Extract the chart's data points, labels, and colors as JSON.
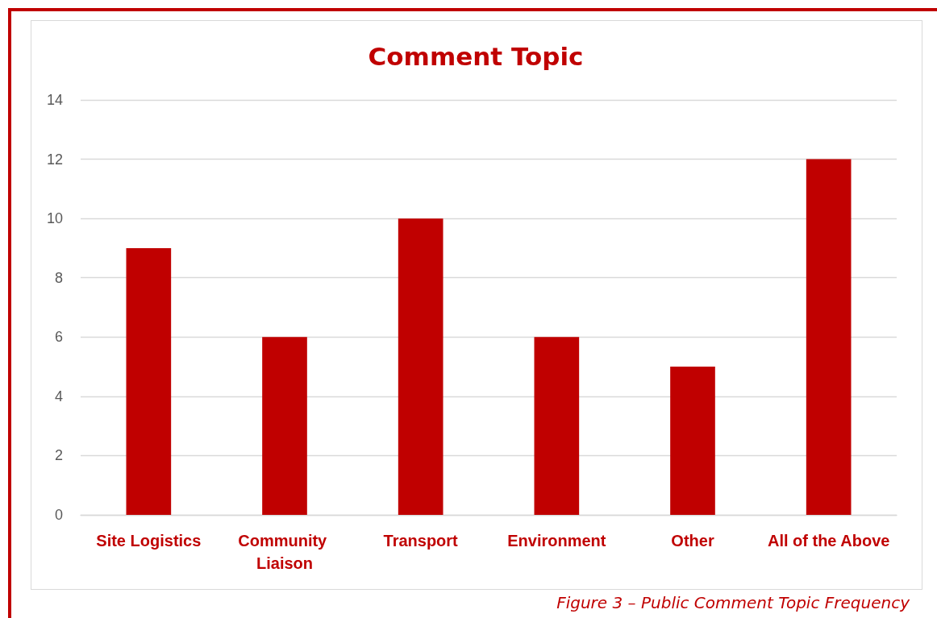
{
  "chart_data": {
    "type": "bar",
    "title": "Comment Topic",
    "categories": [
      "Site Logistics",
      "Community Liaison",
      "Transport",
      "Environment",
      "Other",
      "All of the Above"
    ],
    "values": [
      9,
      6,
      10,
      6,
      5,
      12
    ],
    "color": "#c00000",
    "ylim": [
      0,
      14
    ],
    "yticks": [
      0,
      2,
      4,
      6,
      8,
      10,
      12,
      14
    ],
    "grid": "y",
    "annotations": [
      "Figure 3 – Public Comment Topic Frequency"
    ]
  }
}
